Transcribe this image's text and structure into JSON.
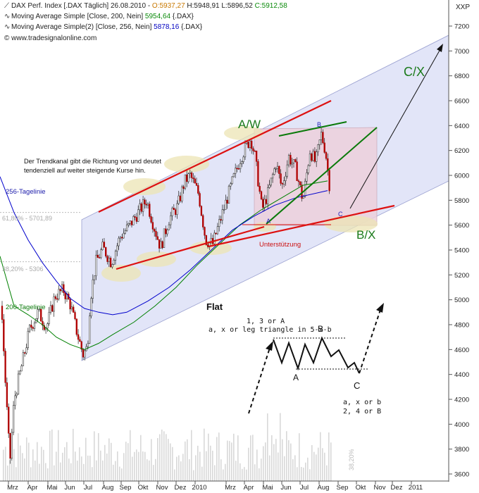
{
  "header": {
    "line1_prefix": "DAX Perf. Index [.DAX  Täglich] 26.08.2010 - ",
    "line1_open": "O:5937,27",
    "line1_high": "H:5948,91",
    "line1_low": "L:5896,52",
    "line1_close": "C:5912,58",
    "line2_label": "Moving Average Simple [Close, 200, Nein]",
    "line2_value": "5954,64",
    "line2_sym": "{.DAX}",
    "line3_label": "Moving Average Simple(2) [Close, 256, Nein]",
    "line3_value": "5878,16",
    "line3_sym": "{.DAX}",
    "line4": "© www.tradesignalonline.com",
    "icon_line1": "line-chart-icon",
    "icon_line2": "wave-icon",
    "icon_line3": "wave-icon",
    "icon_line4": "copyright-icon"
  },
  "axis": {
    "symbol": "XXP",
    "y_ticks": [
      "7200",
      "7000",
      "6800",
      "6600",
      "6400",
      "6200",
      "6000",
      "5800",
      "5600",
      "5400",
      "5200",
      "5000",
      "4800",
      "4600",
      "4400",
      "4200",
      "4000",
      "3800",
      "3600"
    ],
    "x_ticks": [
      "Mrz",
      "Apr",
      "Mai",
      "Jun",
      "Jul",
      "Aug",
      "Sep",
      "Okt",
      "Nov",
      "Dez",
      "2010",
      "Mrz",
      "Apr",
      "Mai",
      "Jun",
      "Jul",
      "Aug",
      "Sep",
      "Okt",
      "Nov",
      "Dez",
      "2011"
    ]
  },
  "annotations": {
    "trend_text": "Der Trendkanal gibt die Richtung vor und deutet tendenziell auf weiter steigende Kurse hin.",
    "ma256_label": "256-Tagelinie",
    "ma200_label": "200-Tagelinie",
    "fib_618": "61,80% - 5701,89",
    "fib_382": "38,20% - 5306",
    "fib_side": "38,20%",
    "aw": "A/W",
    "cx": "C/X",
    "bx": "B/X",
    "small_a": "A",
    "small_b": "B",
    "small_c": "C",
    "support": "Unterstützung",
    "flat_title": "Flat",
    "flat_line1": "1, 3 or A",
    "flat_line2": "a, x or leg triangle in 5-x-b",
    "flat_b": "B",
    "flat_a": "A",
    "flat_c": "C",
    "flat_bot1": "a, x or b",
    "flat_bot2": "2, 4 or B"
  },
  "colors": {
    "candle_up": "#ffffff",
    "candle_down": "#b00000",
    "ma200": "#008000",
    "ma256": "#0000cc",
    "channel_fill": "#d8dcf5",
    "box_fill": "#ecd0dc",
    "trend_red": "#dd1111",
    "highlight": "#ece4b4",
    "annot_green": "#1a7a1a"
  },
  "chart_data": {
    "type": "candlestick",
    "title": "DAX Perf. Index [.DAX  Täglich] 26.08.2010",
    "ylim": [
      3600,
      7200
    ],
    "x_range": [
      "2009-03",
      "2011-01"
    ],
    "series": [
      {
        "name": "Moving Average Simple [Close, 200, Nein]",
        "last": 5954.64
      },
      {
        "name": "Moving Average Simple(2) [Close, 256, Nein]",
        "last": 5878.16
      }
    ],
    "last_bar": {
      "date": "26.08.2010",
      "open": 5937.27,
      "high": 5948.91,
      "low": 5896.52,
      "close": 5912.58
    },
    "months": [
      "Mrz",
      "Apr",
      "Mai",
      "Jun",
      "Jul",
      "Aug",
      "Sep",
      "Okt",
      "Nov",
      "Dez",
      "2010",
      "Mrz",
      "Apr",
      "Mai",
      "Jun",
      "Jul",
      "Aug"
    ],
    "monthly_close": [
      4080,
      4770,
      4940,
      4810,
      5330,
      5470,
      5670,
      5420,
      5630,
      5960,
      5610,
      6150,
      6140,
      5960,
      5970,
      6150,
      5900
    ],
    "monthly_high": [
      4130,
      4800,
      5180,
      5030,
      5360,
      5560,
      5760,
      5880,
      5790,
      6060,
      6040,
      6180,
      6340,
      6290,
      6330,
      6390,
      6380
    ],
    "monthly_low": [
      3590,
      4020,
      4540,
      4620,
      4550,
      5180,
      5370,
      5380,
      5360,
      5650,
      5440,
      5460,
      5900,
      5600,
      5730,
      5800,
      5900
    ],
    "levels": {
      "fib_618": 5701.89,
      "fib_382": 5306
    }
  }
}
